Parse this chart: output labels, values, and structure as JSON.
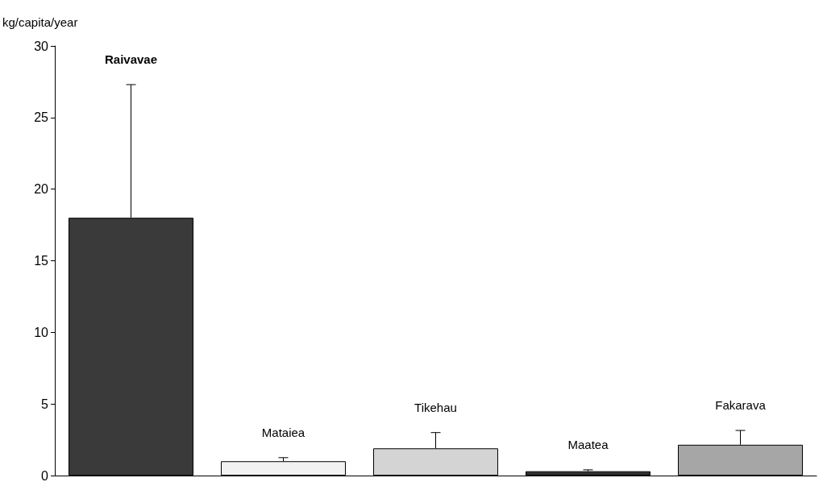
{
  "chart_data": {
    "type": "bar",
    "ylabel": "kg/capita/year",
    "categories": [
      "Raivavae",
      "Mataiea",
      "Tikehau",
      "Maatea",
      "Fakarava"
    ],
    "values": [
      18,
      1,
      1.9,
      0.3,
      2.15
    ],
    "errors": [
      [
        18,
        27.3
      ],
      [
        1,
        1.25
      ],
      [
        1.9,
        3
      ],
      [
        0.3,
        0.4
      ],
      [
        2.15,
        3.15
      ]
    ],
    "colors": [
      "#3a3a3a",
      "#f2f2f2",
      "#d4d4d4",
      "#303030",
      "#a6a6a6"
    ],
    "ylim": [
      0,
      30
    ],
    "yticks": [
      0,
      5,
      10,
      15,
      20,
      25,
      30
    ],
    "grid": false
  }
}
